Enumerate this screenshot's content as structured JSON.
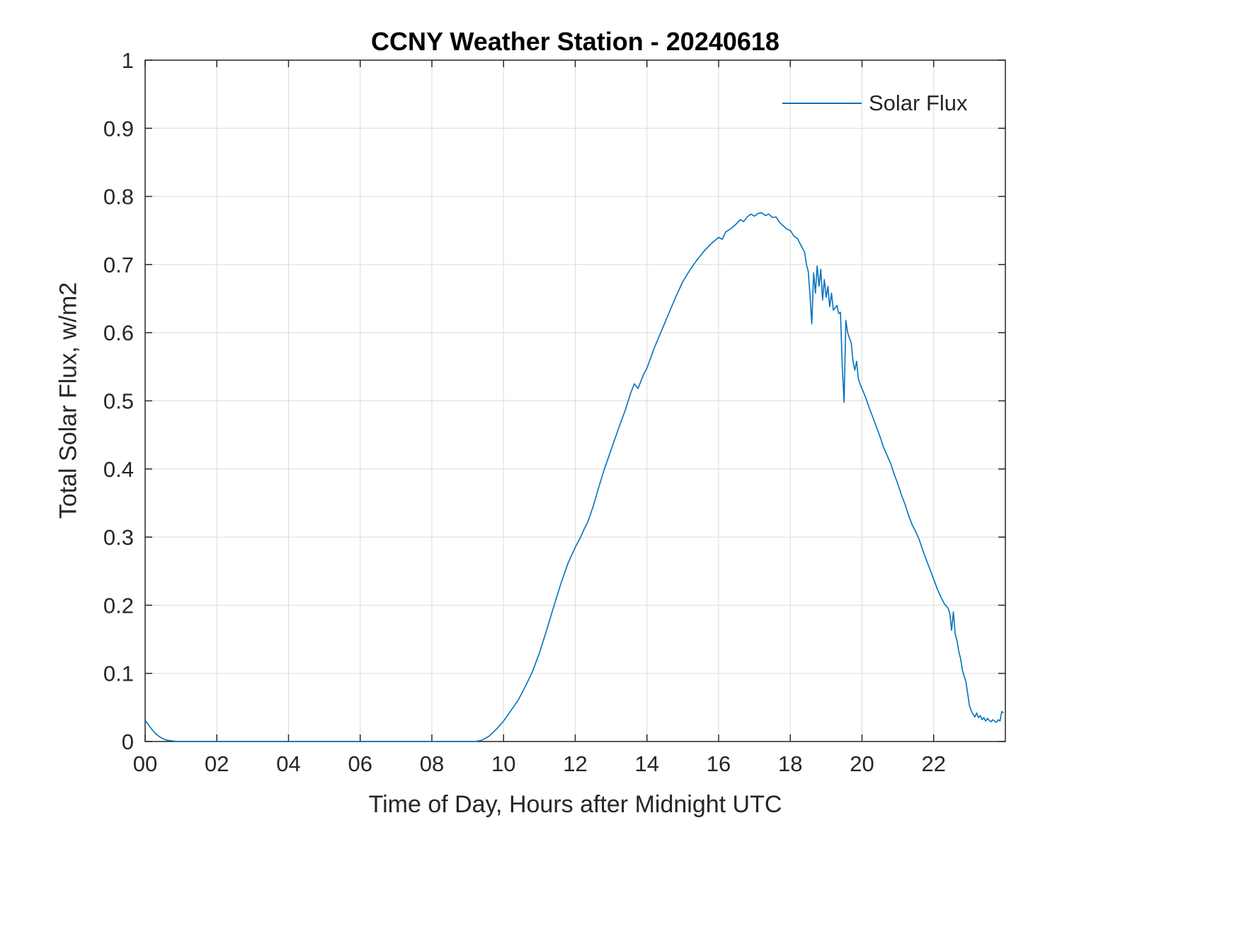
{
  "chart_data": {
    "type": "line",
    "title": "CCNY Weather Station - 20240618",
    "xlabel": "Time of Day, Hours after Midnight UTC",
    "ylabel": "Total Solar Flux, w/m2",
    "xlim": [
      0,
      24
    ],
    "ylim": [
      0,
      1
    ],
    "x_ticks": [
      0,
      2,
      4,
      6,
      8,
      10,
      12,
      14,
      16,
      18,
      20,
      22
    ],
    "x_tick_labels": [
      "00",
      "02",
      "04",
      "06",
      "08",
      "10",
      "12",
      "14",
      "16",
      "18",
      "20",
      "22"
    ],
    "y_ticks": [
      0,
      0.1,
      0.2,
      0.3,
      0.4,
      0.5,
      0.6,
      0.7,
      0.8,
      0.9,
      1
    ],
    "y_tick_labels": [
      "0",
      "0.1",
      "0.2",
      "0.3",
      "0.4",
      "0.5",
      "0.6",
      "0.7",
      "0.8",
      "0.9",
      "1"
    ],
    "grid": true,
    "legend_position": "top-right",
    "line_color": "#0072BD",
    "axis_color": "#262626",
    "grid_color": "#dbdbdb",
    "series": [
      {
        "name": "Solar Flux",
        "points": [
          [
            0.0,
            0.031
          ],
          [
            0.1,
            0.024
          ],
          [
            0.2,
            0.017
          ],
          [
            0.3,
            0.011
          ],
          [
            0.4,
            0.007
          ],
          [
            0.5,
            0.004
          ],
          [
            0.6,
            0.002
          ],
          [
            0.75,
            0.001
          ],
          [
            0.9,
            0
          ],
          [
            1.5,
            0
          ],
          [
            2,
            0
          ],
          [
            3,
            0
          ],
          [
            4,
            0
          ],
          [
            5,
            0
          ],
          [
            6,
            0
          ],
          [
            7,
            0
          ],
          [
            8,
            0
          ],
          [
            8.5,
            0
          ],
          [
            9,
            0
          ],
          [
            9.2,
            0
          ],
          [
            9.4,
            0.002
          ],
          [
            9.6,
            0.008
          ],
          [
            9.8,
            0.018
          ],
          [
            10.0,
            0.03
          ],
          [
            10.2,
            0.045
          ],
          [
            10.4,
            0.06
          ],
          [
            10.6,
            0.08
          ],
          [
            10.8,
            0.102
          ],
          [
            11.0,
            0.13
          ],
          [
            11.2,
            0.163
          ],
          [
            11.4,
            0.198
          ],
          [
            11.6,
            0.232
          ],
          [
            11.8,
            0.262
          ],
          [
            12.0,
            0.285
          ],
          [
            12.15,
            0.3
          ],
          [
            12.25,
            0.312
          ],
          [
            12.35,
            0.322
          ],
          [
            12.5,
            0.345
          ],
          [
            12.65,
            0.372
          ],
          [
            12.8,
            0.398
          ],
          [
            13.0,
            0.428
          ],
          [
            13.2,
            0.458
          ],
          [
            13.4,
            0.487
          ],
          [
            13.55,
            0.512
          ],
          [
            13.65,
            0.525
          ],
          [
            13.75,
            0.518
          ],
          [
            13.9,
            0.538
          ],
          [
            14.0,
            0.548
          ],
          [
            14.2,
            0.577
          ],
          [
            14.4,
            0.602
          ],
          [
            14.6,
            0.627
          ],
          [
            14.8,
            0.652
          ],
          [
            15.0,
            0.675
          ],
          [
            15.2,
            0.692
          ],
          [
            15.4,
            0.707
          ],
          [
            15.6,
            0.72
          ],
          [
            15.8,
            0.731
          ],
          [
            16.0,
            0.74
          ],
          [
            16.1,
            0.737
          ],
          [
            16.2,
            0.748
          ],
          [
            16.35,
            0.753
          ],
          [
            16.5,
            0.76
          ],
          [
            16.6,
            0.766
          ],
          [
            16.7,
            0.763
          ],
          [
            16.8,
            0.77
          ],
          [
            16.9,
            0.774
          ],
          [
            17.0,
            0.771
          ],
          [
            17.1,
            0.775
          ],
          [
            17.2,
            0.776
          ],
          [
            17.3,
            0.772
          ],
          [
            17.4,
            0.774
          ],
          [
            17.5,
            0.769
          ],
          [
            17.6,
            0.77
          ],
          [
            17.7,
            0.762
          ],
          [
            17.8,
            0.757
          ],
          [
            17.9,
            0.752
          ],
          [
            18.0,
            0.75
          ],
          [
            18.1,
            0.742
          ],
          [
            18.2,
            0.738
          ],
          [
            18.3,
            0.728
          ],
          [
            18.4,
            0.718
          ],
          [
            18.45,
            0.7
          ],
          [
            18.5,
            0.69
          ],
          [
            18.55,
            0.655
          ],
          [
            18.6,
            0.613
          ],
          [
            18.65,
            0.688
          ],
          [
            18.7,
            0.658
          ],
          [
            18.75,
            0.698
          ],
          [
            18.8,
            0.668
          ],
          [
            18.85,
            0.693
          ],
          [
            18.9,
            0.648
          ],
          [
            18.95,
            0.678
          ],
          [
            19.0,
            0.652
          ],
          [
            19.05,
            0.668
          ],
          [
            19.1,
            0.638
          ],
          [
            19.15,
            0.658
          ],
          [
            19.2,
            0.633
          ],
          [
            19.3,
            0.64
          ],
          [
            19.35,
            0.628
          ],
          [
            19.4,
            0.63
          ],
          [
            19.45,
            0.55
          ],
          [
            19.5,
            0.498
          ],
          [
            19.55,
            0.618
          ],
          [
            19.6,
            0.6
          ],
          [
            19.65,
            0.592
          ],
          [
            19.7,
            0.585
          ],
          [
            19.75,
            0.558
          ],
          [
            19.8,
            0.545
          ],
          [
            19.85,
            0.558
          ],
          [
            19.9,
            0.532
          ],
          [
            19.95,
            0.524
          ],
          [
            20.0,
            0.518
          ],
          [
            20.1,
            0.505
          ],
          [
            20.2,
            0.49
          ],
          [
            20.3,
            0.476
          ],
          [
            20.4,
            0.462
          ],
          [
            20.5,
            0.448
          ],
          [
            20.6,
            0.432
          ],
          [
            20.7,
            0.42
          ],
          [
            20.8,
            0.408
          ],
          [
            20.9,
            0.392
          ],
          [
            21.0,
            0.378
          ],
          [
            21.1,
            0.362
          ],
          [
            21.2,
            0.348
          ],
          [
            21.3,
            0.332
          ],
          [
            21.4,
            0.318
          ],
          [
            21.5,
            0.308
          ],
          [
            21.6,
            0.296
          ],
          [
            21.7,
            0.28
          ],
          [
            21.8,
            0.266
          ],
          [
            21.9,
            0.252
          ],
          [
            22.0,
            0.238
          ],
          [
            22.1,
            0.224
          ],
          [
            22.2,
            0.212
          ],
          [
            22.3,
            0.202
          ],
          [
            22.4,
            0.196
          ],
          [
            22.45,
            0.188
          ],
          [
            22.5,
            0.163
          ],
          [
            22.55,
            0.19
          ],
          [
            22.6,
            0.158
          ],
          [
            22.65,
            0.148
          ],
          [
            22.7,
            0.132
          ],
          [
            22.75,
            0.122
          ],
          [
            22.8,
            0.105
          ],
          [
            22.85,
            0.096
          ],
          [
            22.9,
            0.088
          ],
          [
            22.95,
            0.07
          ],
          [
            23.0,
            0.052
          ],
          [
            23.05,
            0.045
          ],
          [
            23.1,
            0.04
          ],
          [
            23.15,
            0.036
          ],
          [
            23.2,
            0.042
          ],
          [
            23.25,
            0.035
          ],
          [
            23.3,
            0.038
          ],
          [
            23.35,
            0.032
          ],
          [
            23.4,
            0.035
          ],
          [
            23.45,
            0.03
          ],
          [
            23.5,
            0.034
          ],
          [
            23.55,
            0.031
          ],
          [
            23.6,
            0.029
          ],
          [
            23.65,
            0.032
          ],
          [
            23.7,
            0.03
          ],
          [
            23.75,
            0.028
          ],
          [
            23.8,
            0.032
          ],
          [
            23.85,
            0.03
          ],
          [
            23.9,
            0.044
          ],
          [
            23.95,
            0.042
          ]
        ]
      }
    ]
  }
}
